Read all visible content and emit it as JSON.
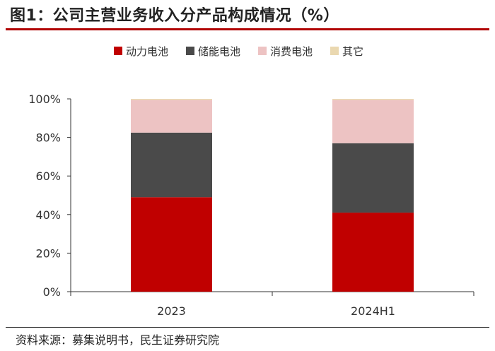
{
  "title": "图1：公司主营业务收入分产品构成情况（%）",
  "source": "资料来源：募集说明书，民生证券研究院",
  "chart_data": {
    "type": "bar",
    "stacked": true,
    "categories": [
      "2023",
      "2024H1"
    ],
    "series": [
      {
        "name": "动力电池",
        "color": "#c00000",
        "values": [
          49,
          41
        ]
      },
      {
        "name": "储能电池",
        "color": "#4a4a4a",
        "values": [
          33.5,
          36
        ]
      },
      {
        "name": "消费电池",
        "color": "#edc3c3",
        "values": [
          17,
          22.5
        ]
      },
      {
        "name": "其它",
        "color": "#ead8b0",
        "values": [
          0.5,
          0.5
        ]
      }
    ],
    "ylim": [
      0,
      100
    ],
    "yticks": [
      "0%",
      "20%",
      "40%",
      "60%",
      "80%",
      "100%"
    ],
    "legend_position": "top",
    "grid": false
  }
}
